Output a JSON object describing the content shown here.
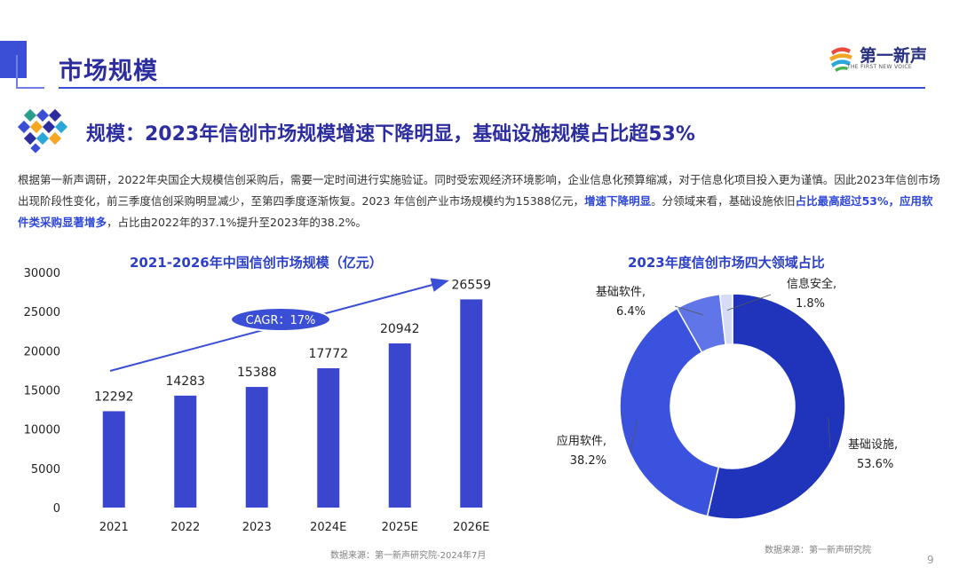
{
  "header": {
    "title": "市场规模",
    "logo_text": "第一新声",
    "logo_sub": "THE FIRST NEW VOICE"
  },
  "section": {
    "heading": "规模：2023年信创市场规模增速下降明显，基础设施规模占比超53%"
  },
  "paragraph": {
    "p1": "根据第一新声调研，2022年央国企大规模信创采购后，需要一定时间进行实施验证。同时受宏观经济环境影响，企业信息化预算缩减，对于信息化项目投入更为谨慎。因此2023年信创市场出现阶段性变化，前三季度信创采购明显减少，至第四季度逐渐恢复。2023 年信创产业市场规模约为15388亿元，",
    "hl1": "增速下降明显",
    "p2": "。分领域来看，基础设施依旧",
    "hl2": "占比最高超过53%，应用软件类采购显著增多",
    "p3": "，占比由2022年的37.1%提升至2023年的38.2%。"
  },
  "colors": {
    "primary": "#3a4fd6",
    "dark": "#2c2d9f",
    "bar": "#3b46cf",
    "highlight": "#2f48d8"
  },
  "chart_data": [
    {
      "type": "bar",
      "title": "2021-2026年中国信创市场规模（亿元）",
      "categories": [
        "2021",
        "2022",
        "2023",
        "2024E",
        "2025E",
        "2026E"
      ],
      "values": [
        12292,
        14283,
        15388,
        17772,
        20942,
        26559
      ],
      "ylim": [
        0,
        30000
      ],
      "yticks": [
        0,
        5000,
        10000,
        15000,
        20000,
        25000,
        30000
      ],
      "annotation": "CAGR：17%",
      "grid": false,
      "source": "数据来源：第一新声研究院-2024年7月"
    },
    {
      "type": "pie",
      "title": "2023年度信创市场四大领域占比",
      "slices": [
        {
          "label": "基础设施,",
          "pct_label": "53.6%",
          "value": 53.6,
          "color": "#1f33bb"
        },
        {
          "label": "应用软件,",
          "pct_label": "38.2%",
          "value": 38.2,
          "color": "#3a52de"
        },
        {
          "label": "基础软件,",
          "pct_label": "6.4%",
          "value": 6.4,
          "color": "#6076e8"
        },
        {
          "label": "信息安全,",
          "pct_label": "1.8%",
          "value": 1.8,
          "color": "#d7dcf5"
        }
      ],
      "source": "数据来源：第一新声研究院"
    }
  ],
  "page_number": "9"
}
